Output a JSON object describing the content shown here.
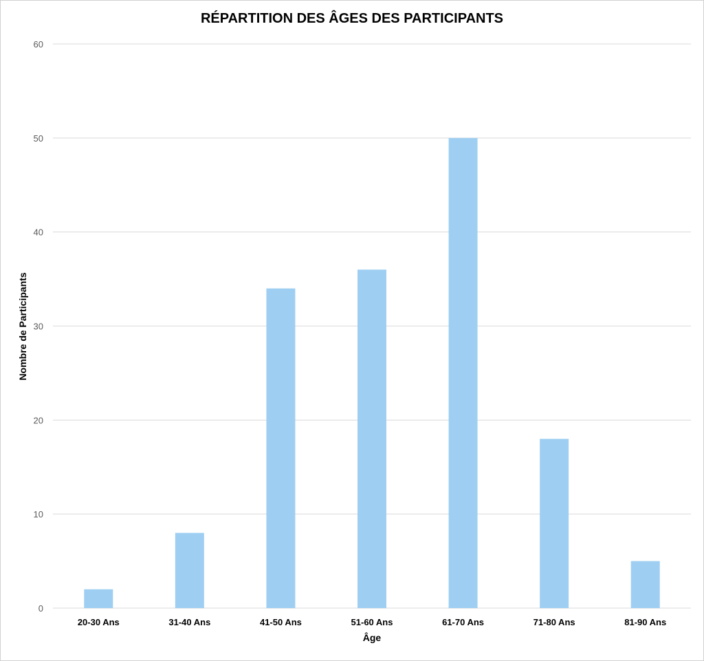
{
  "chart_data": {
    "type": "bar",
    "title": "RÉPARTITION DES ÂGES DES PARTICIPANTS",
    "xlabel": "Âge",
    "ylabel": "Nombre de Participants",
    "categories": [
      "20-30 Ans",
      "31-40 Ans",
      "41-50 Ans",
      "51-60 Ans",
      "61-70 Ans",
      "71-80 Ans",
      "81-90 Ans"
    ],
    "values": [
      2,
      8,
      34,
      36,
      50,
      18,
      5
    ],
    "ylim": [
      0,
      60
    ],
    "yticks": [
      0,
      10,
      20,
      30,
      40,
      50,
      60
    ],
    "grid": true,
    "legend": "none",
    "colors": {
      "bar": "#9ecff2",
      "grid": "#d9d9d9"
    }
  }
}
